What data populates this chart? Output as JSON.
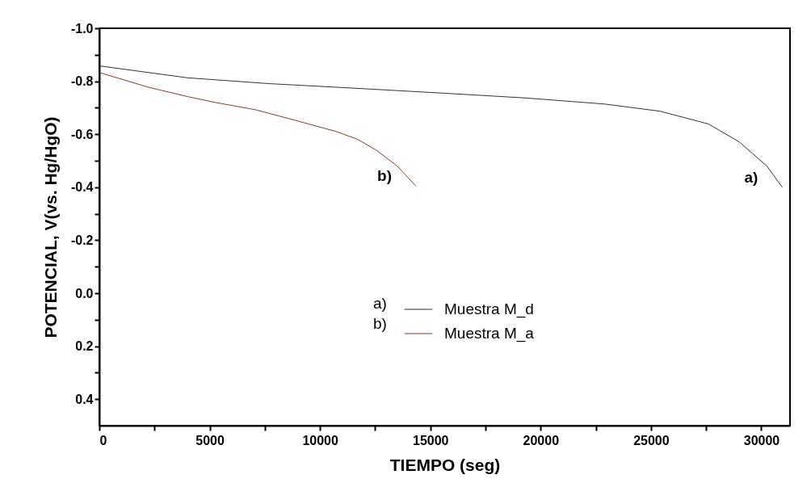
{
  "chart_data": {
    "type": "line",
    "xlabel": "TIEMPO (seg)",
    "ylabel": "POTENCIAL, V(vs. Hg/HgO)",
    "xlim": [
      0,
      31300
    ],
    "ylim": [
      0.5,
      -1.0
    ],
    "xticks": [
      0,
      {
        "value": 2500,
        "label": null
      },
      5000,
      {
        "value": 7500,
        "label": null
      },
      10000,
      {
        "value": 12500,
        "label": null
      },
      15000,
      {
        "value": 17500,
        "label": null
      },
      20000,
      {
        "value": 22500,
        "label": null
      },
      25000,
      {
        "value": 27500,
        "label": null
      },
      30000
    ],
    "yticks": [
      {
        "value": -1.0,
        "label": "-1.0"
      },
      {
        "value": -0.9,
        "label": null
      },
      -0.8,
      {
        "value": -0.7,
        "label": null
      },
      -0.6,
      {
        "value": -0.5,
        "label": null
      },
      -0.4,
      {
        "value": -0.3,
        "label": null
      },
      -0.2,
      {
        "value": -0.1,
        "label": null
      },
      {
        "value": 0,
        "label": "0.0"
      },
      {
        "value": 0.1,
        "label": null
      },
      0.2,
      {
        "value": 0.3,
        "label": null
      },
      0.4
    ],
    "legend": "right",
    "grid": false,
    "series": [
      {
        "name": "Muestra M_d",
        "color": "#333333",
        "x": [
          0,
          4000,
          7700,
          11300,
          15600,
          19300,
          22900,
          25400,
          27600,
          29000,
          30250,
          30950
        ],
        "values": [
          -0.858,
          -0.813,
          -0.791,
          -0.775,
          -0.755,
          -0.737,
          -0.714,
          -0.687,
          -0.639,
          -0.571,
          -0.48,
          -0.4
        ]
      },
      {
        "name": "Muestra M_a",
        "color": "#8b3a2a",
        "x": [
          0,
          2200,
          4000,
          5250,
          7100,
          8900,
          10700,
          11700,
          12550,
          13500,
          14350
        ],
        "values": [
          -0.833,
          -0.778,
          -0.742,
          -0.72,
          -0.692,
          -0.652,
          -0.611,
          -0.581,
          -0.54,
          -0.48,
          -0.404
        ]
      }
    ],
    "annotations": [
      {
        "text": "a)",
        "x": 30950,
        "y": -0.4
      },
      {
        "text": "b)",
        "x": 14350,
        "y": -0.404
      },
      "a)",
      "b)"
    ]
  }
}
